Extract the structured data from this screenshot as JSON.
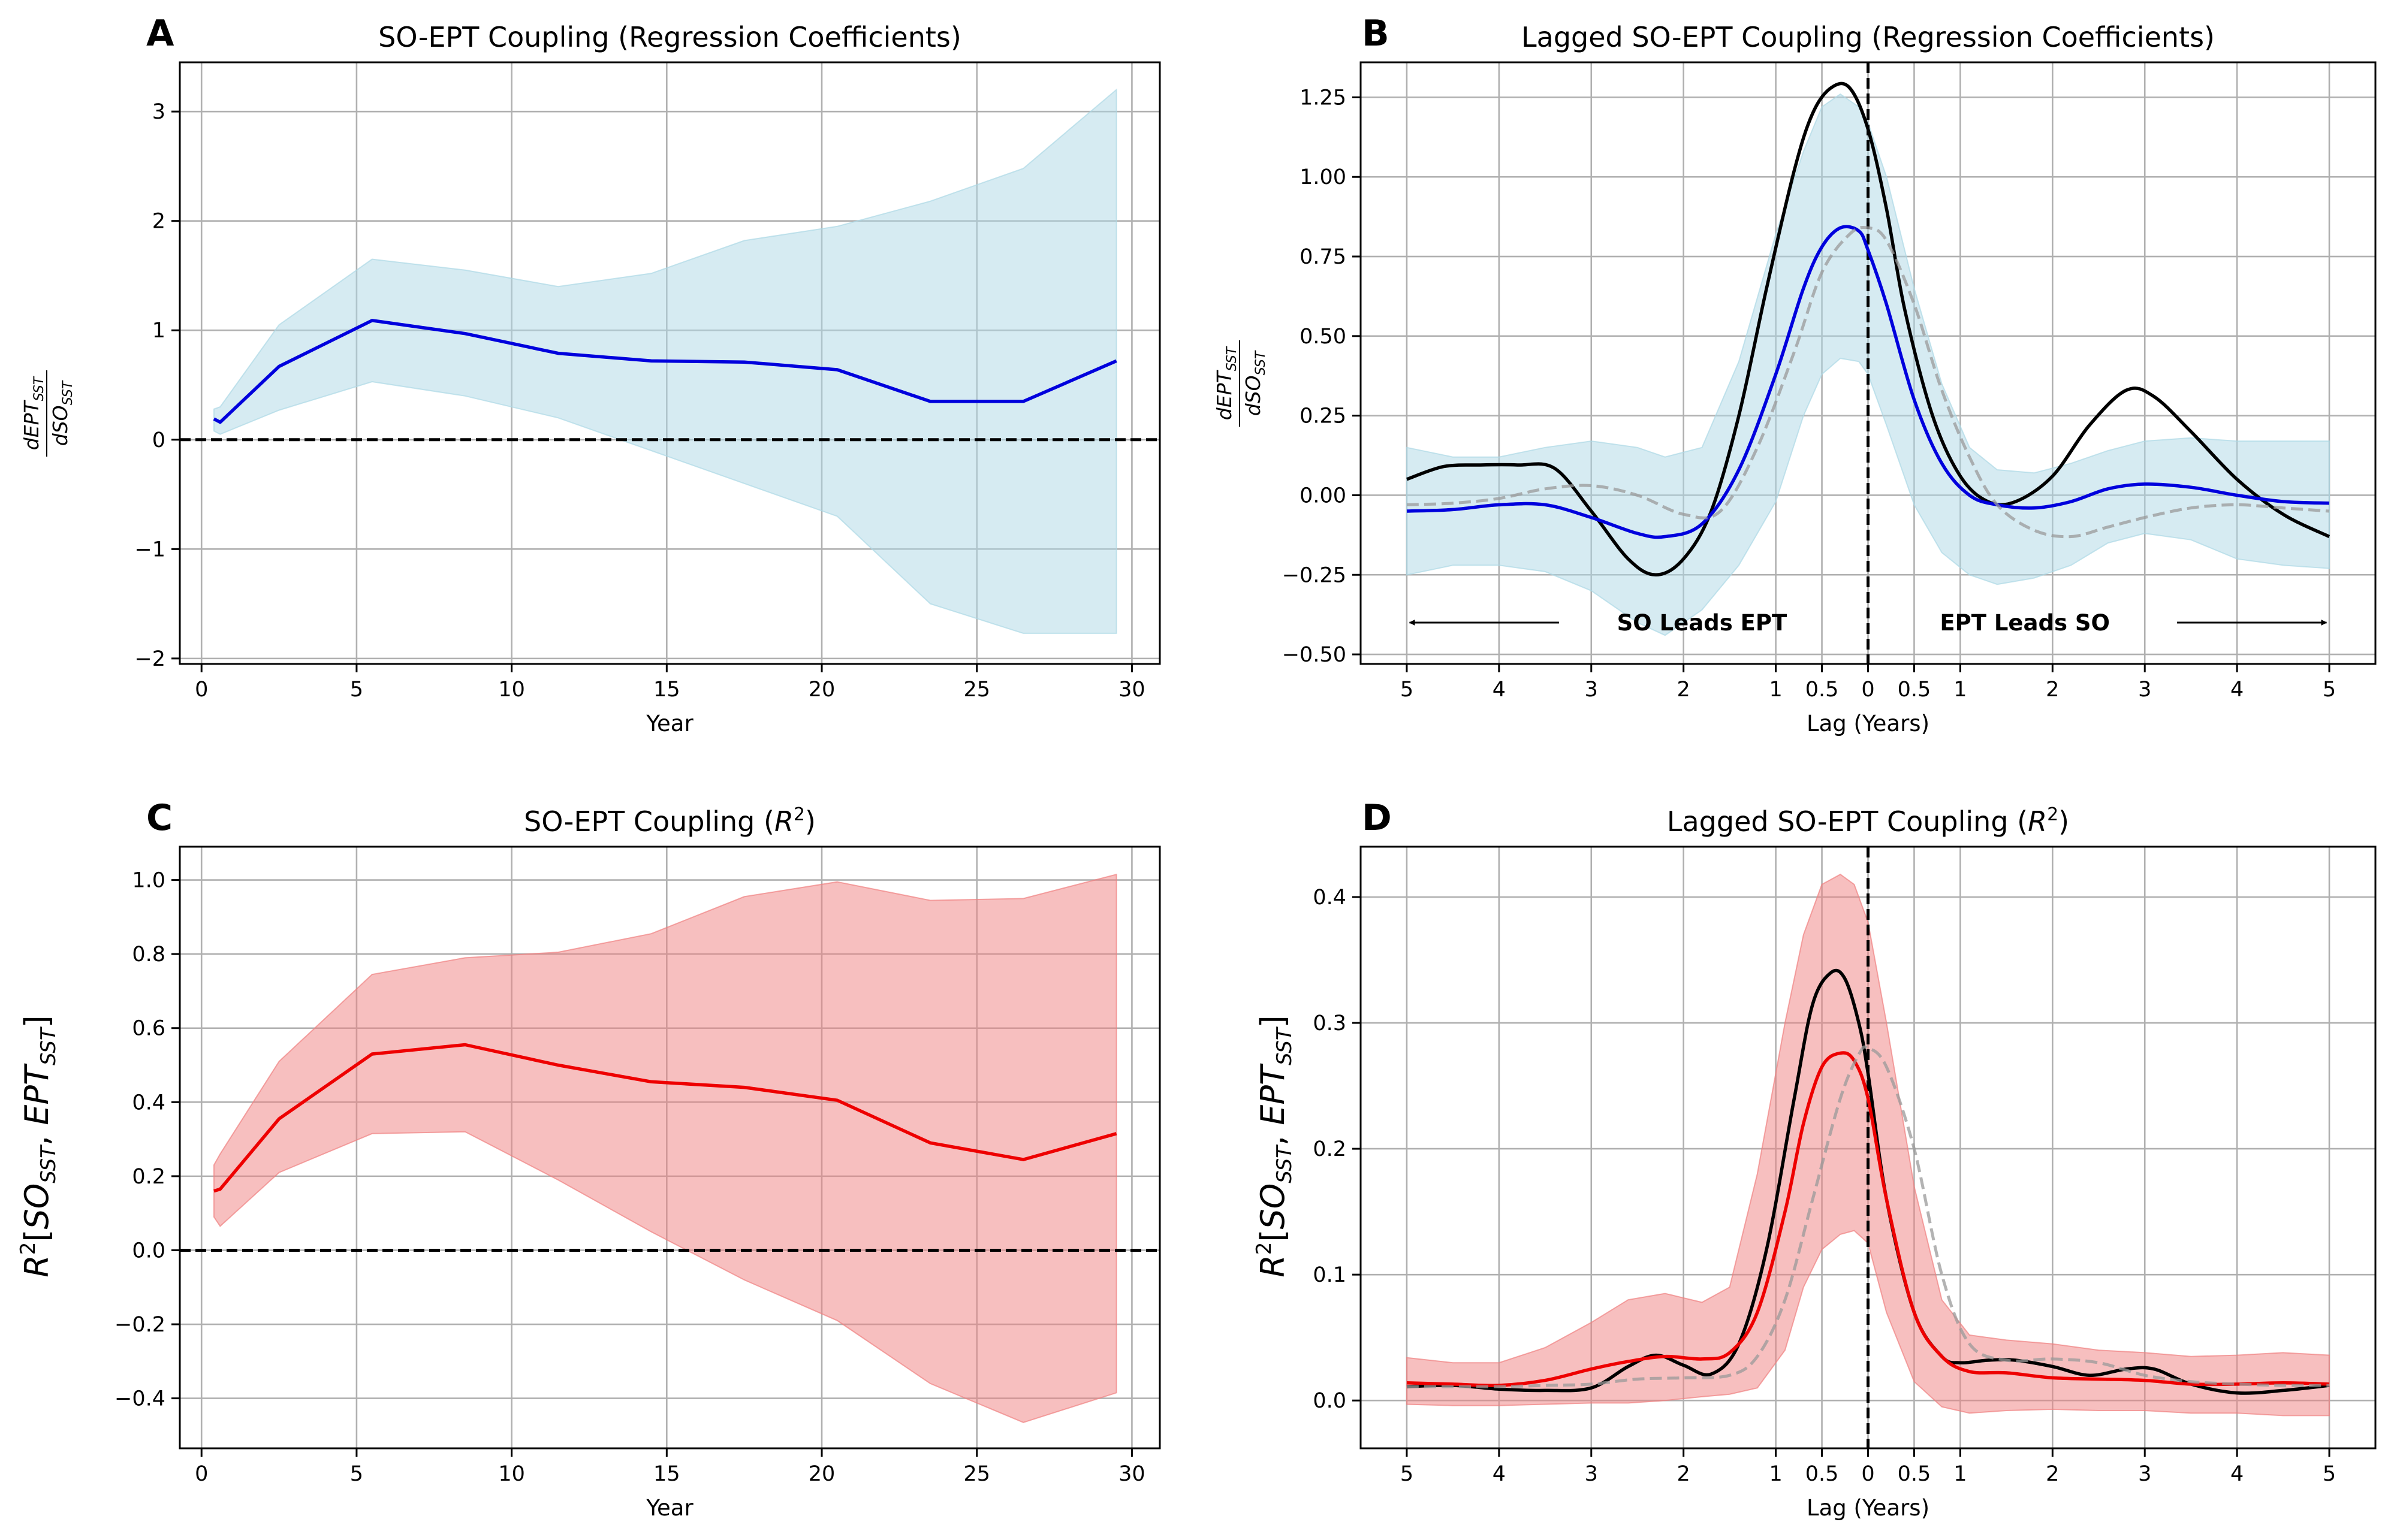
{
  "chart_data": [
    {
      "panel": "A",
      "type": "line",
      "title": "SO-EPT Coupling (Regression Coefficients)",
      "xlabel": "Year",
      "ylabel": "dEPT_SST / dSO_SST",
      "xlim": [
        -0.7,
        30.9
      ],
      "ylim": [
        -2.05,
        3.45
      ],
      "xticks": [
        0,
        5,
        10,
        15,
        20,
        25,
        30
      ],
      "yticks": [
        -2,
        -1,
        0,
        1,
        2,
        3
      ],
      "ytick_labels": [
        "−2",
        "−1",
        "0",
        "1",
        "2",
        "3"
      ],
      "grid": true,
      "reference_line": {
        "y": 0,
        "style": "dashed",
        "color": "#000000"
      },
      "series": [
        {
          "kind": "line",
          "color": "#0000dd",
          "x": [
            0.4,
            0.6,
            2.5,
            5.5,
            8.5,
            11.5,
            14.5,
            17.5,
            20.5,
            23.5,
            26.5,
            29.5
          ],
          "y": [
            0.19,
            0.16,
            0.67,
            1.09,
            0.97,
            0.79,
            0.72,
            0.71,
            0.64,
            0.35,
            0.35,
            0.72
          ]
        }
      ],
      "bands": [
        {
          "color": "#add8e6",
          "opacity": 0.5,
          "x": [
            0.4,
            0.6,
            2.5,
            5.5,
            8.5,
            11.5,
            14.5,
            17.5,
            20.5,
            23.5,
            26.5,
            29.5
          ],
          "upper": [
            0.28,
            0.3,
            1.05,
            1.65,
            1.55,
            1.4,
            1.52,
            1.82,
            1.95,
            2.18,
            2.48,
            3.2
          ],
          "lower": [
            0.08,
            0.05,
            0.27,
            0.53,
            0.4,
            0.2,
            -0.1,
            -0.4,
            -0.7,
            -1.5,
            -1.77,
            -1.77
          ]
        }
      ]
    },
    {
      "panel": "B",
      "type": "line",
      "title": "Lagged SO-EPT Coupling (Regression Coefficients)",
      "xlabel": "Lag (Years)",
      "ylabel": "dEPT_SST / dSO_SST",
      "xlim": [
        -5.5,
        5.5
      ],
      "ylim": [
        -0.53,
        1.36
      ],
      "xticks": [
        -5,
        -4,
        -3,
        -2,
        -1,
        -0.5,
        0,
        0.5,
        1,
        2,
        3,
        4,
        5
      ],
      "xtick_labels": [
        "5",
        "4",
        "3",
        "2",
        "1",
        "0.5",
        "0",
        "0.5",
        "1",
        "2",
        "3",
        "4",
        "5"
      ],
      "yticks": [
        -0.5,
        -0.25,
        0,
        0.25,
        0.5,
        0.75,
        1,
        1.25
      ],
      "ytick_labels": [
        "−0.50",
        "−0.25",
        "0.00",
        "0.25",
        "0.50",
        "0.75",
        "1.00",
        "1.25"
      ],
      "grid": true,
      "reference_vline": {
        "x": 0,
        "style": "dashed",
        "color": "#000000"
      },
      "annotations": {
        "left": "SO Leads EPT",
        "right": "EPT Leads SO",
        "arrow_y": -0.4
      },
      "series": [
        {
          "kind": "line",
          "color": "#000000",
          "x": [
            -5,
            -4.6,
            -4.2,
            -3.8,
            -3.4,
            -3,
            -2.6,
            -2.3,
            -2,
            -1.7,
            -1.4,
            -1.1,
            -0.8,
            -0.6,
            -0.4,
            -0.2,
            0,
            0.2,
            0.4,
            0.7,
            1,
            1.3,
            1.6,
            2,
            2.4,
            2.8,
            3.1,
            3.5,
            4,
            4.5,
            5
          ],
          "y": [
            0.05,
            0.09,
            0.095,
            0.095,
            0.085,
            -0.05,
            -0.2,
            -0.25,
            -0.2,
            -0.05,
            0.25,
            0.65,
            1.02,
            1.2,
            1.28,
            1.28,
            1.15,
            0.9,
            0.58,
            0.25,
            0.06,
            -0.02,
            -0.02,
            0.06,
            0.22,
            0.33,
            0.31,
            0.2,
            0.05,
            -0.06,
            -0.13
          ]
        },
        {
          "kind": "line",
          "color": "#0000dd",
          "x": [
            -5,
            -4.5,
            -4,
            -3.5,
            -3,
            -2.5,
            -2.2,
            -1.8,
            -1.4,
            -1,
            -0.7,
            -0.5,
            -0.3,
            -0.1,
            0,
            0.2,
            0.5,
            0.8,
            1.1,
            1.4,
            1.8,
            2.2,
            2.6,
            3,
            3.5,
            4,
            4.5,
            5
          ],
          "y": [
            -0.05,
            -0.045,
            -0.03,
            -0.03,
            -0.07,
            -0.12,
            -0.13,
            -0.09,
            0.08,
            0.38,
            0.65,
            0.78,
            0.84,
            0.83,
            0.77,
            0.6,
            0.3,
            0.1,
            0.0,
            -0.03,
            -0.04,
            -0.02,
            0.02,
            0.035,
            0.025,
            0.0,
            -0.02,
            -0.025
          ]
        },
        {
          "kind": "line",
          "color": "#999999",
          "dashed": true,
          "opacity": 0.75,
          "x": [
            -5,
            -4.5,
            -4,
            -3.5,
            -3,
            -2.5,
            -2,
            -1.6,
            -1.2,
            -0.8,
            -0.5,
            -0.2,
            0,
            0.2,
            0.5,
            0.8,
            1.1,
            1.4,
            1.8,
            2.2,
            2.6,
            3,
            3.5,
            4,
            4.5,
            5
          ],
          "y": [
            -0.03,
            -0.025,
            -0.01,
            0.02,
            0.03,
            0.0,
            -0.06,
            -0.05,
            0.15,
            0.45,
            0.7,
            0.82,
            0.84,
            0.8,
            0.6,
            0.33,
            0.12,
            -0.03,
            -0.11,
            -0.13,
            -0.1,
            -0.07,
            -0.04,
            -0.03,
            -0.04,
            -0.05
          ]
        }
      ],
      "bands": [
        {
          "color": "#add8e6",
          "opacity": 0.5,
          "x": [
            -5,
            -4.5,
            -4,
            -3.5,
            -3,
            -2.5,
            -2.2,
            -1.8,
            -1.4,
            -1,
            -0.7,
            -0.5,
            -0.3,
            -0.1,
            0,
            0.2,
            0.5,
            0.8,
            1.1,
            1.4,
            1.8,
            2.2,
            2.6,
            3,
            3.5,
            4,
            4.5,
            5
          ],
          "upper": [
            0.15,
            0.12,
            0.12,
            0.15,
            0.17,
            0.15,
            0.12,
            0.15,
            0.42,
            0.82,
            1.08,
            1.22,
            1.26,
            1.22,
            1.17,
            1.0,
            0.65,
            0.35,
            0.15,
            0.08,
            0.07,
            0.1,
            0.14,
            0.17,
            0.18,
            0.17,
            0.17,
            0.17
          ],
          "lower": [
            -0.25,
            -0.22,
            -0.22,
            -0.24,
            -0.3,
            -0.4,
            -0.44,
            -0.36,
            -0.22,
            -0.02,
            0.25,
            0.38,
            0.43,
            0.42,
            0.38,
            0.22,
            -0.03,
            -0.18,
            -0.25,
            -0.28,
            -0.26,
            -0.22,
            -0.15,
            -0.12,
            -0.14,
            -0.2,
            -0.22,
            -0.23
          ]
        }
      ]
    },
    {
      "panel": "C",
      "type": "line",
      "title": "SO-EPT Coupling (R²)",
      "xlabel": "Year",
      "ylabel": "R²[SO_SST, EPT_SST]",
      "xlim": [
        -0.7,
        30.9
      ],
      "ylim": [
        -0.535,
        1.09
      ],
      "xticks": [
        0,
        5,
        10,
        15,
        20,
        25,
        30
      ],
      "yticks": [
        -0.4,
        -0.2,
        0,
        0.2,
        0.4,
        0.6,
        0.8,
        1.0
      ],
      "ytick_labels": [
        "−0.4",
        "−0.2",
        "0.0",
        "0.2",
        "0.4",
        "0.6",
        "0.8",
        "1.0"
      ],
      "grid": true,
      "reference_line": {
        "y": 0,
        "style": "dashed",
        "color": "#000000"
      },
      "series": [
        {
          "kind": "line",
          "color": "#ee0000",
          "x": [
            0.4,
            0.6,
            2.5,
            5.5,
            8.5,
            11.5,
            14.5,
            17.5,
            20.5,
            23.5,
            26.5,
            29.5
          ],
          "y": [
            0.16,
            0.165,
            0.355,
            0.53,
            0.555,
            0.5,
            0.455,
            0.44,
            0.405,
            0.29,
            0.245,
            0.315
          ]
        }
      ],
      "bands": [
        {
          "color": "#f08080",
          "opacity": 0.5,
          "x": [
            0.4,
            0.6,
            2.5,
            5.5,
            8.5,
            11.5,
            14.5,
            17.5,
            20.5,
            23.5,
            26.5,
            29.5
          ],
          "upper": [
            0.23,
            0.26,
            0.51,
            0.745,
            0.79,
            0.805,
            0.855,
            0.955,
            0.995,
            0.945,
            0.95,
            1.015
          ],
          "lower": [
            0.09,
            0.065,
            0.21,
            0.315,
            0.32,
            0.19,
            0.05,
            -0.08,
            -0.19,
            -0.36,
            -0.465,
            -0.385
          ]
        }
      ]
    },
    {
      "panel": "D",
      "type": "line",
      "title": "Lagged SO-EPT Coupling (R²)",
      "xlabel": "Lag (Years)",
      "ylabel": "R²[SO_SST, EPT_SST]",
      "xlim": [
        -5.5,
        5.5
      ],
      "ylim": [
        -0.038,
        0.44
      ],
      "xticks": [
        -5,
        -4,
        -3,
        -2,
        -1,
        -0.5,
        0,
        0.5,
        1,
        2,
        3,
        4,
        5
      ],
      "xtick_labels": [
        "5",
        "4",
        "3",
        "2",
        "1",
        "0.5",
        "0",
        "0.5",
        "1",
        "2",
        "3",
        "4",
        "5"
      ],
      "yticks": [
        0,
        0.1,
        0.2,
        0.3,
        0.4
      ],
      "ytick_labels": [
        "0.0",
        "0.1",
        "0.2",
        "0.3",
        "0.4"
      ],
      "grid": true,
      "reference_vline": {
        "x": 0,
        "style": "dashed",
        "color": "#000000"
      },
      "series": [
        {
          "kind": "line",
          "color": "#000000",
          "x": [
            -5,
            -4.5,
            -4,
            -3.5,
            -3,
            -2.6,
            -2.3,
            -2,
            -1.7,
            -1.4,
            -1.1,
            -0.8,
            -0.6,
            -0.4,
            -0.25,
            -0.1,
            0,
            0.2,
            0.5,
            0.8,
            1,
            1.3,
            1.6,
            2,
            2.4,
            2.8,
            3.1,
            3.5,
            4,
            4.5,
            5
          ],
          "y": [
            0.011,
            0.012,
            0.009,
            0.008,
            0.01,
            0.027,
            0.036,
            0.028,
            0.021,
            0.045,
            0.12,
            0.24,
            0.315,
            0.34,
            0.335,
            0.3,
            0.26,
            0.16,
            0.07,
            0.035,
            0.03,
            0.032,
            0.032,
            0.027,
            0.02,
            0.025,
            0.025,
            0.013,
            0.006,
            0.008,
            0.012
          ]
        },
        {
          "kind": "line",
          "color": "#ee0000",
          "x": [
            -5,
            -4.5,
            -4,
            -3.5,
            -3,
            -2.6,
            -2.2,
            -1.8,
            -1.5,
            -1.2,
            -0.9,
            -0.7,
            -0.5,
            -0.3,
            -0.15,
            0,
            0.2,
            0.5,
            0.8,
            1.1,
            1.5,
            2,
            2.5,
            3,
            3.5,
            4,
            4.5,
            5
          ],
          "y": [
            0.014,
            0.013,
            0.012,
            0.016,
            0.025,
            0.031,
            0.035,
            0.033,
            0.038,
            0.07,
            0.15,
            0.22,
            0.265,
            0.276,
            0.27,
            0.24,
            0.16,
            0.07,
            0.035,
            0.023,
            0.022,
            0.018,
            0.017,
            0.016,
            0.013,
            0.013,
            0.014,
            0.013
          ]
        },
        {
          "kind": "line",
          "color": "#999999",
          "dashed": true,
          "opacity": 0.75,
          "x": [
            -5,
            -4.5,
            -4,
            -3.5,
            -3,
            -2.5,
            -2,
            -1.5,
            -1.2,
            -0.9,
            -0.6,
            -0.3,
            -0.1,
            0,
            0.2,
            0.5,
            0.8,
            1.1,
            1.5,
            2,
            2.5,
            3,
            3.5,
            4,
            4.5,
            5
          ],
          "y": [
            0.011,
            0.011,
            0.011,
            0.012,
            0.013,
            0.017,
            0.018,
            0.02,
            0.035,
            0.08,
            0.16,
            0.24,
            0.275,
            0.28,
            0.265,
            0.2,
            0.1,
            0.045,
            0.032,
            0.033,
            0.03,
            0.02,
            0.015,
            0.013,
            0.012,
            0.012
          ]
        }
      ],
      "bands": [
        {
          "color": "#f08080",
          "opacity": 0.5,
          "x": [
            -5,
            -4.5,
            -4,
            -3.5,
            -3,
            -2.6,
            -2.2,
            -1.8,
            -1.5,
            -1.2,
            -0.9,
            -0.7,
            -0.5,
            -0.3,
            -0.15,
            0,
            0.2,
            0.5,
            0.8,
            1.1,
            1.5,
            2,
            2.5,
            3,
            3.5,
            4,
            4.5,
            5
          ],
          "upper": [
            0.034,
            0.03,
            0.03,
            0.042,
            0.062,
            0.08,
            0.085,
            0.078,
            0.09,
            0.18,
            0.3,
            0.37,
            0.41,
            0.418,
            0.41,
            0.38,
            0.3,
            0.17,
            0.08,
            0.052,
            0.048,
            0.045,
            0.04,
            0.038,
            0.035,
            0.036,
            0.038,
            0.036
          ],
          "lower": [
            -0.003,
            -0.004,
            -0.004,
            -0.003,
            -0.002,
            -0.002,
            0.0,
            0.003,
            0.005,
            0.01,
            0.04,
            0.09,
            0.12,
            0.132,
            0.135,
            0.125,
            0.07,
            0.015,
            -0.005,
            -0.01,
            -0.008,
            -0.007,
            -0.008,
            -0.008,
            -0.01,
            -0.01,
            -0.012,
            -0.012
          ]
        }
      ]
    }
  ]
}
